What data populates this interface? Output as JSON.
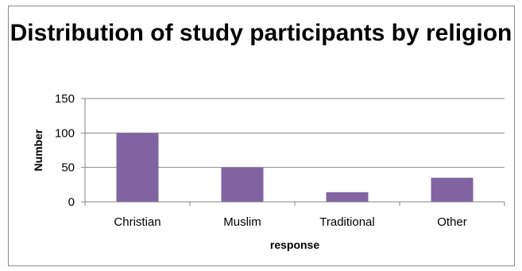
{
  "chart_data": {
    "type": "bar",
    "title": "Distribution of study participants by religion",
    "xlabel": "response",
    "ylabel": "Number",
    "categories": [
      "Christian",
      "Muslim",
      "Traditional",
      "Other"
    ],
    "values": [
      100,
      50,
      14,
      35
    ],
    "ylim": [
      0,
      150
    ],
    "yticks": [
      0,
      50,
      100,
      150
    ],
    "grid": true,
    "legend": "none",
    "bar_color": "#8064a2",
    "grid_color": "#868686"
  }
}
